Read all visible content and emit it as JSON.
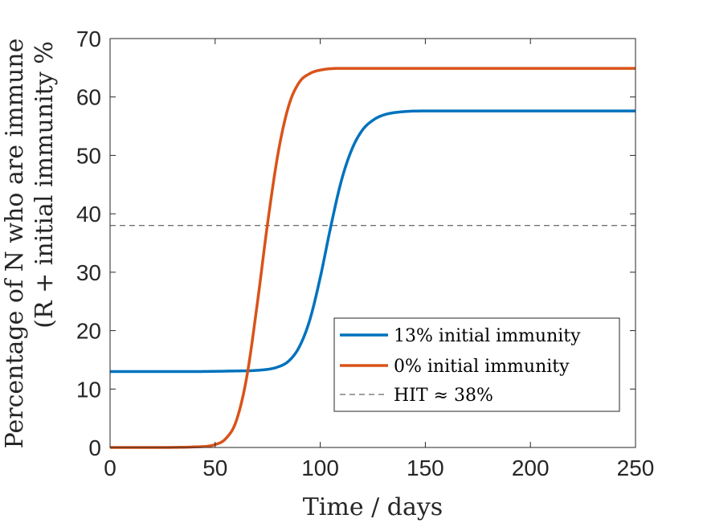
{
  "chart_data": {
    "type": "line",
    "title": "",
    "xlabel": "Time / days",
    "ylabel_line1": "Percentage of N who are immune",
    "ylabel_line2": "(R + initial immunity %",
    "xlim": [
      0,
      250
    ],
    "ylim": [
      0,
      70
    ],
    "x_ticks": [
      0,
      50,
      100,
      150,
      200,
      250
    ],
    "y_ticks": [
      0,
      10,
      20,
      30,
      40,
      50,
      60,
      70
    ],
    "grid": false,
    "legend_position": "lower-right",
    "series": [
      {
        "name": "13% initial immunity",
        "color": "#0072BD",
        "style": "solid",
        "x": [
          0,
          20,
          40,
          60,
          70,
          80,
          85,
          90,
          95,
          100,
          105,
          110,
          115,
          120,
          125,
          130,
          140,
          150,
          175,
          200,
          250
        ],
        "y": [
          13,
          13,
          13,
          13.1,
          13.2,
          13.8,
          14.8,
          17.2,
          21.8,
          29.1,
          37.8,
          45.6,
          51.0,
          54.3,
          56.0,
          56.9,
          57.5,
          57.6,
          57.6,
          57.6,
          57.6
        ]
      },
      {
        "name": "0% initial immunity",
        "color": "#D95319",
        "style": "solid",
        "x": [
          0,
          20,
          40,
          50,
          55,
          60,
          65,
          70,
          75,
          80,
          85,
          90,
          95,
          100,
          110,
          125,
          150,
          200,
          250
        ],
        "y": [
          0,
          0,
          0.1,
          0.5,
          1.5,
          4.5,
          12.0,
          24.5,
          38.5,
          50.5,
          58.5,
          62.5,
          64.0,
          64.6,
          64.9,
          64.9,
          64.9,
          64.9,
          64.9
        ]
      },
      {
        "name": "HIT ≈ 38%",
        "color": "#404040",
        "style": "dashed",
        "x": [
          0,
          250
        ],
        "y": [
          38,
          38
        ]
      }
    ]
  }
}
